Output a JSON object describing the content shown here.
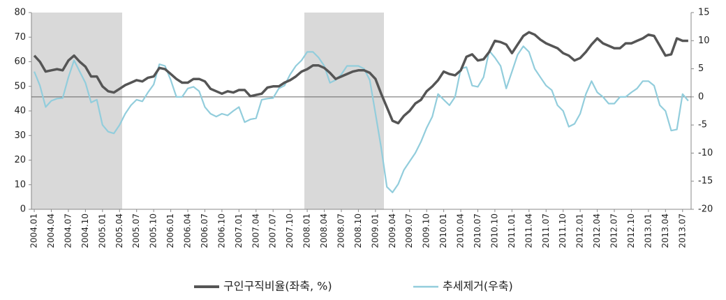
{
  "chart_data": {
    "type": "line",
    "categories": [
      "2004.01",
      null,
      null,
      "2004.04",
      null,
      null,
      "2004.07",
      null,
      null,
      "2004.10",
      null,
      null,
      "2005.01",
      null,
      null,
      "2005.04",
      null,
      null,
      "2005.07",
      null,
      null,
      "2005.10",
      null,
      null,
      "2006.01",
      null,
      null,
      "2006.04",
      null,
      null,
      "2006.07",
      null,
      null,
      "2006.10",
      null,
      null,
      "2007.01",
      null,
      null,
      "2007.04",
      null,
      null,
      "2007.07",
      null,
      null,
      "2007.10",
      null,
      null,
      "2008.01",
      null,
      null,
      "2008.04",
      null,
      null,
      "2008.07",
      null,
      null,
      "2008.10",
      null,
      null,
      "2009.01",
      null,
      null,
      "2009.04",
      null,
      null,
      "2009.07",
      null,
      null,
      "2009.10",
      null,
      null,
      "2010.01",
      null,
      null,
      "2010.04",
      null,
      null,
      "2010.07",
      null,
      null,
      "2010.10",
      null,
      null,
      "2011.01",
      null,
      null,
      "2011.04",
      null,
      null,
      "2011.07",
      null,
      null,
      "2011.10",
      null,
      null,
      "2012.01",
      null,
      null,
      "2012.04",
      null,
      null,
      "2012.07",
      null,
      null,
      "2012.10",
      null,
      null,
      "2013.01",
      null,
      null,
      "2013.04",
      null,
      null,
      "2013.07",
      null
    ],
    "series": [
      {
        "name": "구인구직비율(좌축, %)",
        "color": "#555555",
        "axis": "y",
        "values": [
          62.5,
          60,
          56,
          56.5,
          57,
          56.5,
          60.5,
          62.5,
          60,
          58,
          54,
          54,
          50,
          48,
          47.5,
          49,
          50.5,
          51.5,
          52.5,
          52,
          53.5,
          54,
          57.5,
          57,
          55,
          53,
          51.5,
          51.5,
          53,
          53,
          52,
          49,
          48,
          47,
          48,
          47.5,
          48.5,
          48.5,
          46,
          46.5,
          47,
          49.5,
          50,
          50,
          51.5,
          52.5,
          54,
          56,
          57,
          58.5,
          58.5,
          57.5,
          55.5,
          53,
          54,
          55,
          56,
          56.5,
          56.5,
          55.5,
          53,
          47,
          41.5,
          36,
          35,
          38,
          40,
          43,
          44.5,
          48,
          50,
          52.5,
          56,
          55,
          54.5,
          56.5,
          62,
          63,
          60.5,
          61,
          64,
          68.5,
          68,
          67,
          63.5,
          67,
          70.5,
          72,
          71,
          69,
          67.5,
          66.5,
          65.5,
          63.5,
          62.5,
          60.5,
          61.5,
          64,
          67,
          69.5,
          67.5,
          66.5,
          65.5,
          65.5,
          67.5,
          67.5,
          68.5,
          69.5,
          71,
          70.5,
          66.5,
          62.5,
          63,
          69.5,
          68.5,
          68.5
        ]
      },
      {
        "name": "추세제거(우축)",
        "color": "#92cddc",
        "axis": "y2",
        "values": [
          4.5,
          2,
          -1.8,
          -0.7,
          -0.3,
          -0.2,
          3.5,
          6.5,
          4.5,
          2.5,
          -1,
          -0.5,
          -5,
          -6.2,
          -6.5,
          -5,
          -3,
          -1.5,
          -0.5,
          -0.8,
          0.8,
          2.2,
          5.8,
          5.5,
          3,
          0,
          0,
          1.5,
          1.8,
          1,
          -1.8,
          -3,
          -3.5,
          -3,
          -3.3,
          -2.5,
          -1.8,
          -4.5,
          -4,
          -3.8,
          -0.5,
          -0.3,
          -0.2,
          1.5,
          2,
          4,
          5.5,
          6.5,
          8,
          8,
          7,
          5.5,
          2.5,
          3,
          4,
          5.5,
          5.5,
          5.5,
          5,
          3,
          -3,
          -9,
          -16,
          -17,
          -15.5,
          -13,
          -11.5,
          -10,
          -8,
          -5.5,
          -3.5,
          0.5,
          -0.5,
          -1.5,
          0,
          5,
          5.3,
          2,
          1.8,
          3.5,
          8.2,
          7,
          5.5,
          1.5,
          4.5,
          7.5,
          9,
          8,
          5,
          3.5,
          2,
          1.2,
          -1.5,
          -2.5,
          -5.3,
          -4.8,
          -3,
          0.5,
          2.8,
          0.8,
          0,
          -1.2,
          -1.2,
          0,
          0,
          0.8,
          1.5,
          2.8,
          2.8,
          2,
          -1.5,
          -2.5,
          -6,
          -5.8,
          0.5,
          -0.7
        ]
      }
    ],
    "ylim": [
      0,
      80
    ],
    "yticks": [
      0,
      10,
      20,
      30,
      40,
      50,
      60,
      70,
      80
    ],
    "y2lim": [
      -20,
      15
    ],
    "y2ticks": [
      -20,
      -15,
      -10,
      -5,
      0,
      5,
      10,
      15
    ],
    "legend": "bottom"
  }
}
